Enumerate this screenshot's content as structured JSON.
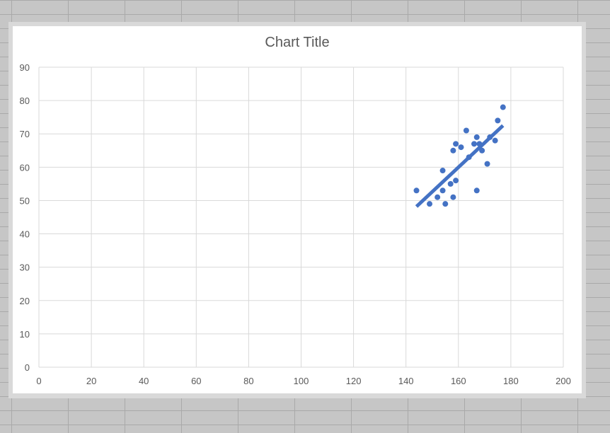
{
  "chart_data": {
    "type": "scatter",
    "title": "Chart Title",
    "xlabel": "",
    "ylabel": "",
    "xlim": [
      0,
      200
    ],
    "ylim": [
      0,
      90
    ],
    "x_ticks": [
      0,
      20,
      40,
      60,
      80,
      100,
      120,
      140,
      160,
      180,
      200
    ],
    "y_ticks": [
      0,
      10,
      20,
      30,
      40,
      50,
      60,
      70,
      80,
      90
    ],
    "grid": true,
    "legend": "none",
    "series": [
      {
        "color": "#4472c4",
        "points": [
          [
            144,
            53
          ],
          [
            149,
            49
          ],
          [
            152,
            51
          ],
          [
            154,
            53
          ],
          [
            154,
            59
          ],
          [
            155,
            49
          ],
          [
            157,
            55
          ],
          [
            158,
            51
          ],
          [
            158,
            65
          ],
          [
            159,
            56
          ],
          [
            159,
            67
          ],
          [
            161,
            66
          ],
          [
            163,
            71
          ],
          [
            164,
            63
          ],
          [
            166,
            67
          ],
          [
            167,
            69
          ],
          [
            167,
            53
          ],
          [
            168,
            67
          ],
          [
            169,
            65
          ],
          [
            171,
            61
          ],
          [
            172,
            69
          ],
          [
            174,
            68
          ],
          [
            175,
            74
          ],
          [
            177,
            78
          ]
        ],
        "trendline": {
          "type": "linear",
          "from": [
            144,
            48.2
          ],
          "to": [
            177,
            72.5
          ],
          "color": "#4472c4"
        }
      }
    ],
    "gridline_color": "#d9d9d9",
    "axis_text_color": "#595959"
  }
}
